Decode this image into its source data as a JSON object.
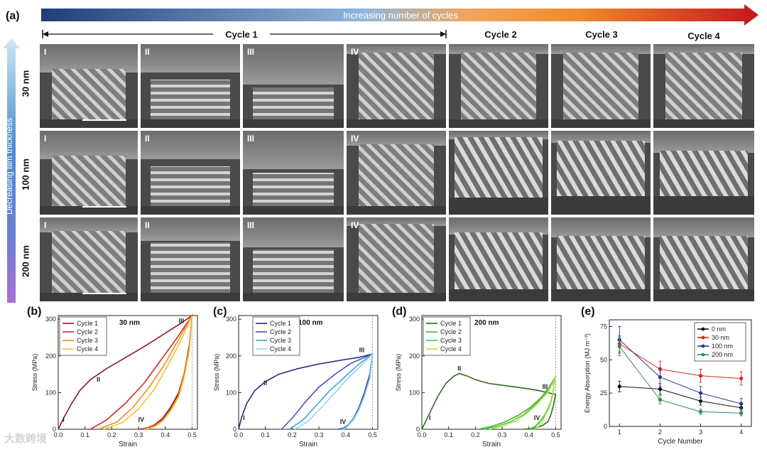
{
  "figure": {
    "panel_a": {
      "label": "(a)",
      "arrow_text": "Increasing number of cycles",
      "thickness_arrow_text": "Decreasing film thickness",
      "cycle1_label": "Cycle 1",
      "columns": [
        "Cycle 2",
        "Cycle 3",
        "Cycle 4"
      ],
      "stages": [
        "I",
        "II",
        "III",
        "IV"
      ],
      "rows": [
        "30 nm",
        "100 nm",
        "200 nm"
      ],
      "colors": {
        "arrow_start": "#1f3e78",
        "arrow_mid": "#8fb6dd",
        "arrow_orange": "#f08a2a",
        "arrow_end": "#c4161c",
        "side_top": "#8ec7ea",
        "side_bottom": "#a86fd0"
      }
    },
    "panel_b": {
      "label": "(b)"
    },
    "panel_c": {
      "label": "(c)"
    },
    "panel_d": {
      "label": "(d)"
    },
    "panel_e": {
      "label": "(e)"
    },
    "watermark": "大数跨境"
  },
  "chart_data": [
    {
      "id": "b",
      "type": "line",
      "title": "30 nm",
      "xlabel": "Strain",
      "ylabel": "Stress (MPa)",
      "xlim": [
        0,
        0.52
      ],
      "ylim": [
        0,
        310
      ],
      "xticks": [
        0.0,
        0.1,
        0.2,
        0.3,
        0.4,
        0.5
      ],
      "xtick_labels": [
        "0.0",
        "0.1",
        "0.2",
        "0.3",
        "0.4",
        "0.5"
      ],
      "yticks": [
        0,
        100,
        200,
        300
      ],
      "legend_position": "top-left",
      "annotations": [
        {
          "text": "I",
          "x": 0.02,
          "y": 20
        },
        {
          "text": "II",
          "x": 0.15,
          "y": 130
        },
        {
          "text": "III",
          "x": 0.46,
          "y": 290
        },
        {
          "text": "IV",
          "x": 0.31,
          "y": 20
        }
      ],
      "series": [
        {
          "name": "Cycle 1",
          "color": "#8b1a2b",
          "x": [
            0,
            0.02,
            0.05,
            0.08,
            0.12,
            0.18,
            0.25,
            0.32,
            0.4,
            0.46,
            0.5,
            0.49,
            0.47,
            0.45,
            0.42,
            0.39,
            0.36,
            0.33,
            0.3
          ],
          "y": [
            0,
            30,
            70,
            105,
            135,
            165,
            195,
            225,
            262,
            290,
            310,
            230,
            150,
            100,
            60,
            30,
            12,
            3,
            0
          ]
        },
        {
          "name": "Cycle 2",
          "color": "#c4302b",
          "x": [
            0.12,
            0.18,
            0.25,
            0.32,
            0.38,
            0.44,
            0.5,
            0.49,
            0.47,
            0.45,
            0.42,
            0.39,
            0.35,
            0.31
          ],
          "y": [
            0,
            25,
            70,
            125,
            185,
            245,
            310,
            225,
            150,
            95,
            55,
            25,
            8,
            0
          ]
        },
        {
          "name": "Cycle 3",
          "color": "#f08a2a",
          "x": [
            0.15,
            0.22,
            0.28,
            0.34,
            0.4,
            0.45,
            0.5,
            0.49,
            0.47,
            0.45,
            0.42,
            0.39,
            0.36,
            0.32
          ],
          "y": [
            0,
            20,
            60,
            115,
            180,
            245,
            310,
            220,
            145,
            92,
            52,
            24,
            8,
            0
          ]
        },
        {
          "name": "Cycle 4",
          "color": "#f2c12e",
          "x": [
            0.17,
            0.24,
            0.3,
            0.36,
            0.41,
            0.46,
            0.5,
            0.49,
            0.47,
            0.45,
            0.42,
            0.39,
            0.36,
            0.33
          ],
          "y": [
            0,
            18,
            55,
            110,
            175,
            245,
            310,
            215,
            140,
            88,
            50,
            22,
            7,
            0
          ]
        }
      ]
    },
    {
      "id": "c",
      "type": "line",
      "title": "100 nm",
      "xlabel": "Strain",
      "ylabel": "Stress (MPa)",
      "xlim": [
        0,
        0.52
      ],
      "ylim": [
        0,
        310
      ],
      "xticks": [
        0.0,
        0.1,
        0.2,
        0.3,
        0.4,
        0.5
      ],
      "xtick_labels": [
        "0.0",
        "0.1",
        "0.2",
        "0.3",
        "0.4",
        "0.5"
      ],
      "yticks": [
        0,
        100,
        200,
        300
      ],
      "legend_position": "top-left",
      "annotations": [
        {
          "text": "I",
          "x": 0.02,
          "y": 25
        },
        {
          "text": "II",
          "x": 0.1,
          "y": 120
        },
        {
          "text": "III",
          "x": 0.46,
          "y": 210
        },
        {
          "text": "IV",
          "x": 0.39,
          "y": 15
        }
      ],
      "series": [
        {
          "name": "Cycle 1",
          "color": "#2b2a86",
          "x": [
            0,
            0.01,
            0.03,
            0.06,
            0.1,
            0.15,
            0.22,
            0.3,
            0.38,
            0.45,
            0.5,
            0.49,
            0.47,
            0.45,
            0.43,
            0.41,
            0.39,
            0.37
          ],
          "y": [
            0,
            30,
            70,
            105,
            130,
            150,
            165,
            178,
            188,
            196,
            205,
            150,
            100,
            60,
            30,
            12,
            3,
            0
          ]
        },
        {
          "name": "Cycle 2",
          "color": "#4a4fb8",
          "x": [
            0.16,
            0.2,
            0.25,
            0.3,
            0.36,
            0.42,
            0.5,
            0.49,
            0.47,
            0.45,
            0.43,
            0.41,
            0.39,
            0.37
          ],
          "y": [
            0,
            30,
            75,
            115,
            150,
            180,
            205,
            145,
            95,
            58,
            30,
            12,
            3,
            0
          ]
        },
        {
          "name": "Cycle 3",
          "color": "#3fa3d6",
          "x": [
            0.19,
            0.24,
            0.29,
            0.34,
            0.4,
            0.45,
            0.5,
            0.49,
            0.47,
            0.45,
            0.43,
            0.41,
            0.39,
            0.38
          ],
          "y": [
            0,
            25,
            65,
            105,
            145,
            178,
            205,
            140,
            92,
            55,
            28,
            11,
            3,
            0
          ]
        },
        {
          "name": "Cycle 4",
          "color": "#8fd3ef",
          "x": [
            0.21,
            0.26,
            0.31,
            0.36,
            0.41,
            0.46,
            0.5,
            0.49,
            0.47,
            0.45,
            0.43,
            0.41,
            0.4,
            0.39
          ],
          "y": [
            0,
            22,
            60,
            100,
            140,
            176,
            205,
            138,
            90,
            53,
            27,
            10,
            3,
            0
          ]
        }
      ]
    },
    {
      "id": "d",
      "type": "line",
      "title": "200 nm",
      "xlabel": "Strain",
      "ylabel": "Stress (MPa)",
      "xlim": [
        0,
        0.52
      ],
      "ylim": [
        0,
        310
      ],
      "xticks": [
        0.0,
        0.1,
        0.2,
        0.3,
        0.4,
        0.5
      ],
      "xtick_labels": [
        "0.0",
        "0.1",
        "0.2",
        "0.3",
        "0.4",
        "0.5"
      ],
      "yticks": [
        0,
        100,
        200,
        300
      ],
      "legend_position": "top-left",
      "annotations": [
        {
          "text": "I",
          "x": 0.03,
          "y": 25
        },
        {
          "text": "II",
          "x": 0.14,
          "y": 160
        },
        {
          "text": "III",
          "x": 0.46,
          "y": 110
        },
        {
          "text": "IV",
          "x": 0.43,
          "y": 25
        }
      ],
      "series": [
        {
          "name": "Cycle 1",
          "color": "#2f6b1e",
          "x": [
            0,
            0.03,
            0.06,
            0.09,
            0.12,
            0.14,
            0.17,
            0.2,
            0.25,
            0.3,
            0.35,
            0.4,
            0.44,
            0.47,
            0.5,
            0.49,
            0.48,
            0.47,
            0.45,
            0.42,
            0.38
          ],
          "y": [
            0,
            45,
            90,
            125,
            145,
            152,
            145,
            135,
            125,
            120,
            115,
            110,
            105,
            100,
            95,
            60,
            35,
            20,
            10,
            3,
            0
          ]
        },
        {
          "name": "Cycle 2",
          "color": "#5aa83a",
          "x": [
            0.21,
            0.26,
            0.31,
            0.36,
            0.41,
            0.45,
            0.48,
            0.5,
            0.49,
            0.48,
            0.46,
            0.44,
            0.42,
            0.4
          ],
          "y": [
            0,
            8,
            20,
            38,
            62,
            90,
            120,
            145,
            100,
            70,
            40,
            20,
            6,
            0
          ]
        },
        {
          "name": "Cycle 3",
          "color": "#3fd13f",
          "x": [
            0.23,
            0.28,
            0.33,
            0.38,
            0.42,
            0.46,
            0.49,
            0.5,
            0.49,
            0.48,
            0.46,
            0.44,
            0.42,
            0.41
          ],
          "y": [
            0,
            8,
            20,
            40,
            65,
            95,
            125,
            145,
            98,
            68,
            38,
            18,
            5,
            0
          ]
        },
        {
          "name": "Cycle 4",
          "color": "#b6e34a",
          "x": [
            0.25,
            0.3,
            0.35,
            0.39,
            0.43,
            0.47,
            0.49,
            0.5,
            0.49,
            0.48,
            0.46,
            0.45,
            0.43,
            0.42
          ],
          "y": [
            0,
            8,
            22,
            42,
            68,
            100,
            128,
            145,
            95,
            65,
            36,
            17,
            5,
            0
          ]
        }
      ]
    },
    {
      "id": "e",
      "type": "line",
      "title": "",
      "xlabel": "Cycle Number",
      "ylabel": "Energy Absorption (MJ m⁻³)",
      "xlim": [
        0.75,
        4.25
      ],
      "ylim": [
        0,
        80
      ],
      "xticks": [
        1,
        2,
        3,
        4
      ],
      "yticks": [
        0,
        25,
        50,
        75
      ],
      "legend_position": "top-right",
      "series": [
        {
          "name": "0 nm",
          "color": "#111111",
          "x": [
            1,
            2,
            3,
            4
          ],
          "y": [
            30,
            28,
            19,
            14
          ],
          "err": [
            4,
            4,
            3,
            3
          ]
        },
        {
          "name": "30 nm",
          "color": "#e0241d",
          "x": [
            1,
            2,
            3,
            4
          ],
          "y": [
            62,
            43,
            38,
            36
          ],
          "err": [
            6,
            6,
            5,
            5
          ]
        },
        {
          "name": "100 nm",
          "color": "#2a3596",
          "x": [
            1,
            2,
            3,
            4
          ],
          "y": [
            65,
            37,
            25,
            17
          ],
          "err": [
            10,
            7,
            5,
            4
          ]
        },
        {
          "name": "200 nm",
          "color": "#2e8b57",
          "x": [
            1,
            2,
            3,
            4
          ],
          "y": [
            60,
            20,
            11,
            10
          ],
          "err": [
            7,
            3,
            2,
            2
          ]
        }
      ]
    }
  ]
}
